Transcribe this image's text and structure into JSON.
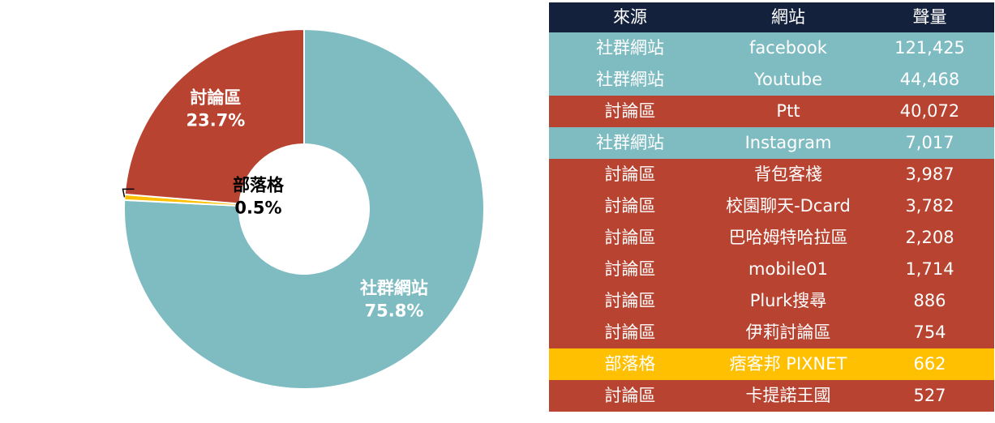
{
  "chart_data": {
    "type": "pie",
    "slices": [
      {
        "label": "社群網站",
        "value": 75.8,
        "value_text": "75.8%",
        "color": "#7fbcc2"
      },
      {
        "label": "部落格",
        "value": 0.5,
        "value_text": "0.5%",
        "color": "#fec000"
      },
      {
        "label": "討論區",
        "value": 23.7,
        "value_text": "23.7%",
        "color": "#b84330"
      }
    ],
    "donut": true
  },
  "table": {
    "headers": [
      "來源",
      "網站",
      "聲量"
    ],
    "header_color": "#14213d",
    "rows": [
      {
        "source": "社群網站",
        "site": "facebook",
        "volume": "121,425",
        "color": "#7fbcc2"
      },
      {
        "source": "社群網站",
        "site": "Youtube",
        "volume": "44,468",
        "color": "#7fbcc2"
      },
      {
        "source": "討論區",
        "site": "Ptt",
        "volume": "40,072",
        "color": "#b84330"
      },
      {
        "source": "社群網站",
        "site": "Instagram",
        "volume": "7,017",
        "color": "#7fbcc2"
      },
      {
        "source": "討論區",
        "site": "背包客棧",
        "volume": "3,987",
        "color": "#b84330"
      },
      {
        "source": "討論區",
        "site": "校園聊天-Dcard",
        "volume": "3,782",
        "color": "#b84330"
      },
      {
        "source": "討論區",
        "site": "巴哈姆特哈拉區",
        "volume": "2,208",
        "color": "#b84330"
      },
      {
        "source": "討論區",
        "site": "mobile01",
        "volume": "1,714",
        "color": "#b84330"
      },
      {
        "source": "討論區",
        "site": "Plurk搜尋",
        "volume": "886",
        "color": "#b84330"
      },
      {
        "source": "討論區",
        "site": "伊莉討論區",
        "volume": "754",
        "color": "#b84330"
      },
      {
        "source": "部落格",
        "site": "痞客邦 PIXNET",
        "volume": "662",
        "color": "#fec000"
      },
      {
        "source": "討論區",
        "site": "卡提諾王國",
        "volume": "527",
        "color": "#b84330"
      }
    ]
  }
}
